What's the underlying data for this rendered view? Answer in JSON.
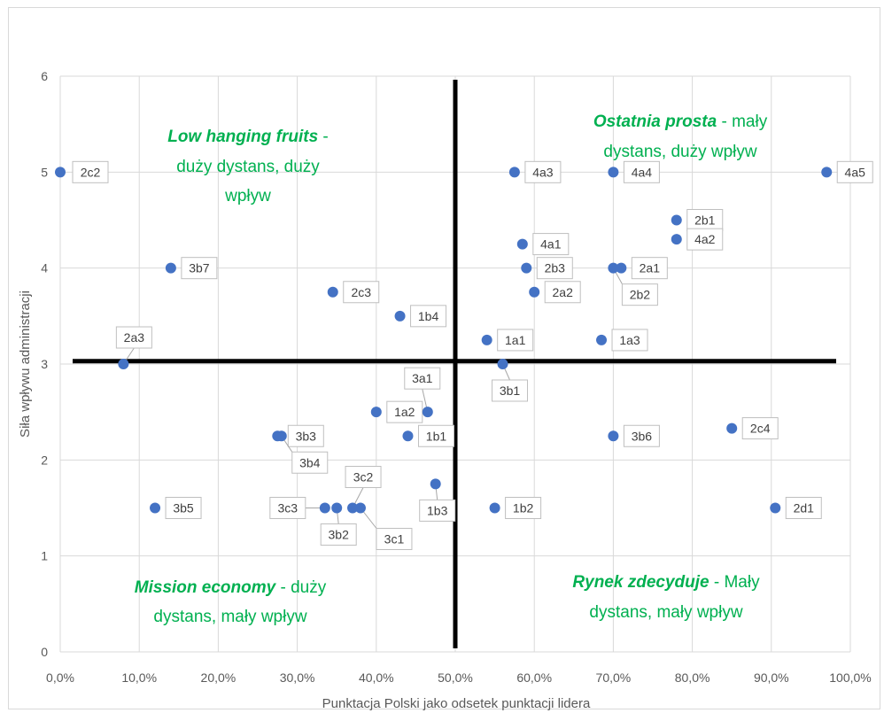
{
  "chart_data": {
    "type": "scatter",
    "title": "",
    "xlabel": "Punktacja Polski jako odsetek punktacji lidera",
    "ylabel": "Siła wpływu administracji",
    "xlim": [
      0,
      1
    ],
    "ylim": [
      0,
      6
    ],
    "x_ticks": [
      "0,0%",
      "10,0%",
      "20,0%",
      "30,0%",
      "40,0%",
      "50,0%",
      "60,0%",
      "70,0%",
      "80,0%",
      "90,0%",
      "100,0%"
    ],
    "y_ticks": [
      "0",
      "1",
      "2",
      "3",
      "4",
      "5",
      "6"
    ],
    "grid": true,
    "point_color": "#4472c4",
    "quadrant_divider": {
      "x": 0.5,
      "y": 3.03
    },
    "points": [
      {
        "label": "2c2",
        "x": 0.0,
        "y": 5.0
      },
      {
        "label": "4a3",
        "x": 0.575,
        "y": 5.0
      },
      {
        "label": "4a4",
        "x": 0.7,
        "y": 5.0
      },
      {
        "label": "4a5",
        "x": 0.97,
        "y": 5.0
      },
      {
        "label": "2b1",
        "x": 0.78,
        "y": 4.5
      },
      {
        "label": "4a2",
        "x": 0.78,
        "y": 4.3
      },
      {
        "label": "4a1",
        "x": 0.585,
        "y": 4.25
      },
      {
        "label": "3b7",
        "x": 0.14,
        "y": 4.0
      },
      {
        "label": "2b3",
        "x": 0.59,
        "y": 4.0
      },
      {
        "label": "2a1",
        "x": 0.71,
        "y": 4.0
      },
      {
        "label": "2b2",
        "x": 0.7,
        "y": 4.0
      },
      {
        "label": "2c3",
        "x": 0.345,
        "y": 3.75
      },
      {
        "label": "2a2",
        "x": 0.6,
        "y": 3.75
      },
      {
        "label": "1b4",
        "x": 0.43,
        "y": 3.5
      },
      {
        "label": "1a1",
        "x": 0.54,
        "y": 3.25
      },
      {
        "label": "1a3",
        "x": 0.685,
        "y": 3.25
      },
      {
        "label": "2a3",
        "x": 0.08,
        "y": 3.0
      },
      {
        "label": "3b1",
        "x": 0.56,
        "y": 3.0
      },
      {
        "label": "3a1",
        "x": 0.465,
        "y": 2.5
      },
      {
        "label": "1a2",
        "x": 0.4,
        "y": 2.5
      },
      {
        "label": "3b3",
        "x": 0.275,
        "y": 2.25
      },
      {
        "label": "3b4",
        "x": 0.28,
        "y": 2.25
      },
      {
        "label": "1b1",
        "x": 0.44,
        "y": 2.25
      },
      {
        "label": "3b6",
        "x": 0.7,
        "y": 2.25
      },
      {
        "label": "2c4",
        "x": 0.85,
        "y": 2.33
      },
      {
        "label": "1b3",
        "x": 0.475,
        "y": 1.75
      },
      {
        "label": "3b5",
        "x": 0.12,
        "y": 1.5
      },
      {
        "label": "3c3",
        "x": 0.335,
        "y": 1.5
      },
      {
        "label": "3b2",
        "x": 0.35,
        "y": 1.5
      },
      {
        "label": "3c2",
        "x": 0.37,
        "y": 1.5
      },
      {
        "label": "3c1",
        "x": 0.38,
        "y": 1.5
      },
      {
        "label": "1b2",
        "x": 0.55,
        "y": 1.5
      },
      {
        "label": "2d1",
        "x": 0.905,
        "y": 1.5
      }
    ]
  },
  "quadrants": {
    "top_left": {
      "bold": "Low hanging fruits",
      "rest": " -",
      "line2": "duży dystans, duży",
      "line3": "wpływ"
    },
    "top_right": {
      "bold": "Ostatnia prosta",
      "rest": " - mały",
      "line2": "dystans, duży wpływ"
    },
    "bottom_left": {
      "bold": "Mission economy",
      "rest": " - duży",
      "line2": "dystans, mały wpływ"
    },
    "bottom_right": {
      "bold": "Rynek zdecyduje",
      "rest": " - Mały",
      "line2": "dystans, mały wpływ"
    }
  },
  "colors": {
    "accent_text": "#00b050",
    "divider": "#000000",
    "grid": "#d9d9d9"
  }
}
